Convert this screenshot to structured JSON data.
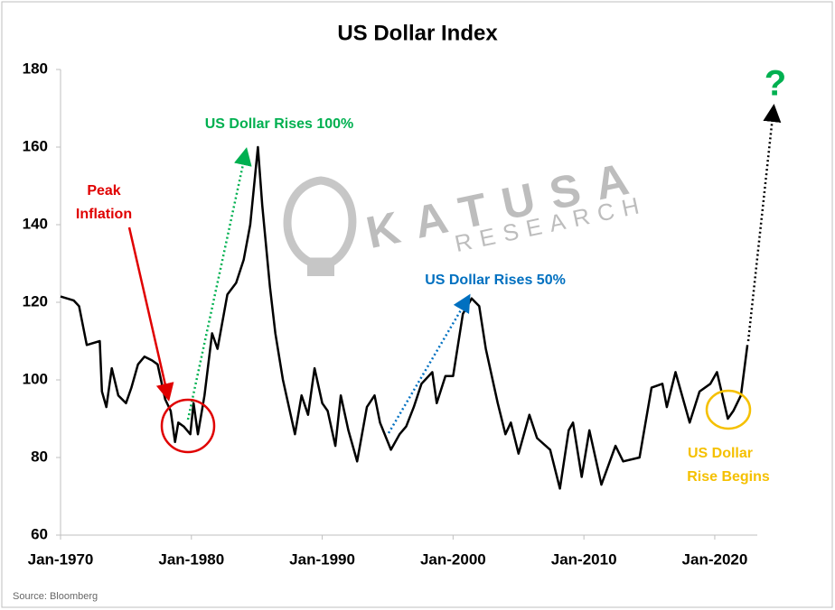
{
  "chart_data": {
    "type": "line",
    "title": "US Dollar Index",
    "x": [
      "1970-01",
      "1971-01",
      "1971-06",
      "1972-01",
      "1973-01",
      "1973-03",
      "1973-07",
      "1973-12",
      "1974-06",
      "1975-01",
      "1975-06",
      "1975-12",
      "1976-06",
      "1977-01",
      "1977-06",
      "1978-01",
      "1978-06",
      "1978-10",
      "1979-01",
      "1979-06",
      "1979-12",
      "1980-03",
      "1980-07",
      "1981-01",
      "1981-08",
      "1982-01",
      "1982-10",
      "1983-06",
      "1984-01",
      "1984-07",
      "1985-02",
      "1985-06",
      "1986-01",
      "1986-06",
      "1987-01",
      "1987-12",
      "1988-06",
      "1988-12",
      "1989-06",
      "1990-01",
      "1990-06",
      "1991-01",
      "1991-06",
      "1992-01",
      "1992-09",
      "1993-06",
      "1994-01",
      "1994-06",
      "1995-04",
      "1995-12",
      "1996-06",
      "1997-01",
      "1997-08",
      "1998-06",
      "1998-10",
      "1999-06",
      "2000-01",
      "2000-10",
      "2001-06",
      "2002-01",
      "2002-07",
      "2003-06",
      "2004-01",
      "2004-06",
      "2005-01",
      "2005-11",
      "2006-06",
      "2007-06",
      "2008-03",
      "2008-11",
      "2009-03",
      "2009-11",
      "2010-06",
      "2011-05",
      "2012-06",
      "2013-01",
      "2014-04",
      "2015-03",
      "2016-01",
      "2016-05",
      "2017-01",
      "2018-02",
      "2018-11",
      "2019-09",
      "2020-03",
      "2021-01",
      "2021-06",
      "2022-01",
      "2022-07"
    ],
    "values": [
      121.5,
      120.5,
      119,
      109,
      110,
      97,
      93,
      103,
      96,
      94,
      98,
      104,
      106,
      105,
      104,
      95,
      92,
      84,
      89,
      88,
      86,
      94,
      86,
      96,
      112,
      108,
      122,
      125,
      131,
      140,
      160,
      145,
      124,
      112,
      100,
      86,
      96,
      91,
      103,
      94,
      92,
      83,
      96,
      87,
      79,
      93,
      96,
      89,
      82,
      86,
      88,
      93,
      99,
      102,
      94,
      101,
      101,
      117,
      121,
      119,
      108,
      94,
      86,
      89,
      81,
      91,
      85,
      82,
      72,
      87,
      89,
      75,
      87,
      73,
      83,
      79,
      80,
      98,
      99,
      93,
      102,
      89,
      97,
      99,
      102,
      90,
      92,
      96,
      109
    ],
    "color": "#000000",
    "xlim": [
      "1970-01",
      "2023-04"
    ],
    "xticks": [
      {
        "value": "1970-01",
        "label": "Jan-1970"
      },
      {
        "value": "1980-01",
        "label": "Jan-1980"
      },
      {
        "value": "1990-01",
        "label": "Jan-1990"
      },
      {
        "value": "2000-01",
        "label": "Jan-2000"
      },
      {
        "value": "2010-01",
        "label": "Jan-2010"
      },
      {
        "value": "2020-01",
        "label": "Jan-2020"
      }
    ],
    "ylim": [
      60,
      180
    ],
    "yticks": [
      60,
      80,
      100,
      120,
      140,
      160,
      180
    ],
    "grid": false,
    "annotations": {
      "peak": [
        "Peak",
        "Inflation"
      ],
      "rise100": "US Dollar Rises 100%",
      "rise50": "US Dollar Rises 50%",
      "begins": [
        "US Dollar",
        "Rise Begins"
      ],
      "question": "?",
      "watermark": [
        "KATUSA",
        "RESEARCH"
      ]
    },
    "source": "Source: Bloomberg"
  }
}
